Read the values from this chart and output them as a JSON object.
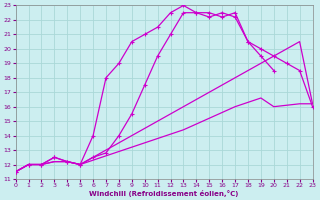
{
  "xlabel": "Windchill (Refroidissement éolien,°C)",
  "xlim": [
    0,
    23
  ],
  "ylim": [
    11,
    23
  ],
  "xticks": [
    0,
    1,
    2,
    3,
    4,
    5,
    6,
    7,
    8,
    9,
    10,
    11,
    12,
    13,
    14,
    15,
    16,
    17,
    18,
    19,
    20,
    21,
    22,
    23
  ],
  "yticks": [
    11,
    12,
    13,
    14,
    15,
    16,
    17,
    18,
    19,
    20,
    21,
    22,
    23
  ],
  "bg_color": "#cceef0",
  "line_color": "#cc00cc",
  "grid_color": "#aad8d8",
  "line1_x": [
    0,
    1,
    2,
    3,
    4,
    5,
    6,
    7,
    8,
    9,
    10,
    11,
    12,
    13,
    14,
    15,
    16,
    17,
    18,
    19,
    20
  ],
  "line1_y": [
    11.5,
    12.0,
    12.0,
    12.5,
    12.2,
    12.0,
    14.0,
    18.0,
    19.0,
    20.5,
    21.0,
    21.5,
    22.5,
    23.0,
    22.5,
    22.2,
    22.5,
    22.2,
    20.5,
    19.5,
    18.5
  ],
  "line2_x": [
    0,
    1,
    2,
    3,
    4,
    5,
    6,
    7,
    8,
    9,
    10,
    11,
    12,
    13,
    14,
    15,
    16,
    17,
    18,
    19,
    20,
    21,
    22,
    23
  ],
  "line2_y": [
    11.5,
    12.0,
    12.0,
    12.2,
    12.2,
    12.0,
    12.5,
    13.0,
    13.5,
    14.0,
    14.5,
    15.0,
    15.5,
    16.0,
    16.5,
    17.0,
    17.5,
    18.0,
    18.5,
    19.0,
    19.5,
    20.0,
    20.5,
    16.2
  ],
  "line3_x": [
    0,
    1,
    2,
    3,
    4,
    5,
    6,
    7,
    8,
    9,
    10,
    11,
    12,
    13,
    14,
    15,
    16,
    17,
    18,
    19,
    20,
    21,
    22,
    23
  ],
  "line3_y": [
    11.5,
    12.0,
    12.0,
    12.2,
    12.2,
    12.0,
    12.3,
    12.6,
    12.9,
    13.2,
    13.5,
    13.8,
    14.1,
    14.4,
    14.8,
    15.2,
    15.6,
    16.0,
    16.3,
    16.6,
    16.0,
    16.1,
    16.2,
    16.2
  ],
  "line4_x": [
    0,
    1,
    2,
    3,
    4,
    5,
    6,
    7,
    8,
    9,
    10,
    11,
    12,
    13,
    14,
    15,
    16,
    17,
    18,
    19,
    20,
    21,
    22,
    23
  ],
  "line4_y": [
    11.5,
    12.0,
    12.0,
    12.5,
    12.2,
    12.0,
    12.5,
    12.8,
    14.0,
    15.5,
    17.5,
    19.5,
    21.0,
    22.5,
    22.5,
    22.5,
    22.2,
    22.5,
    20.5,
    20.0,
    19.5,
    19.0,
    18.5,
    16.0
  ]
}
